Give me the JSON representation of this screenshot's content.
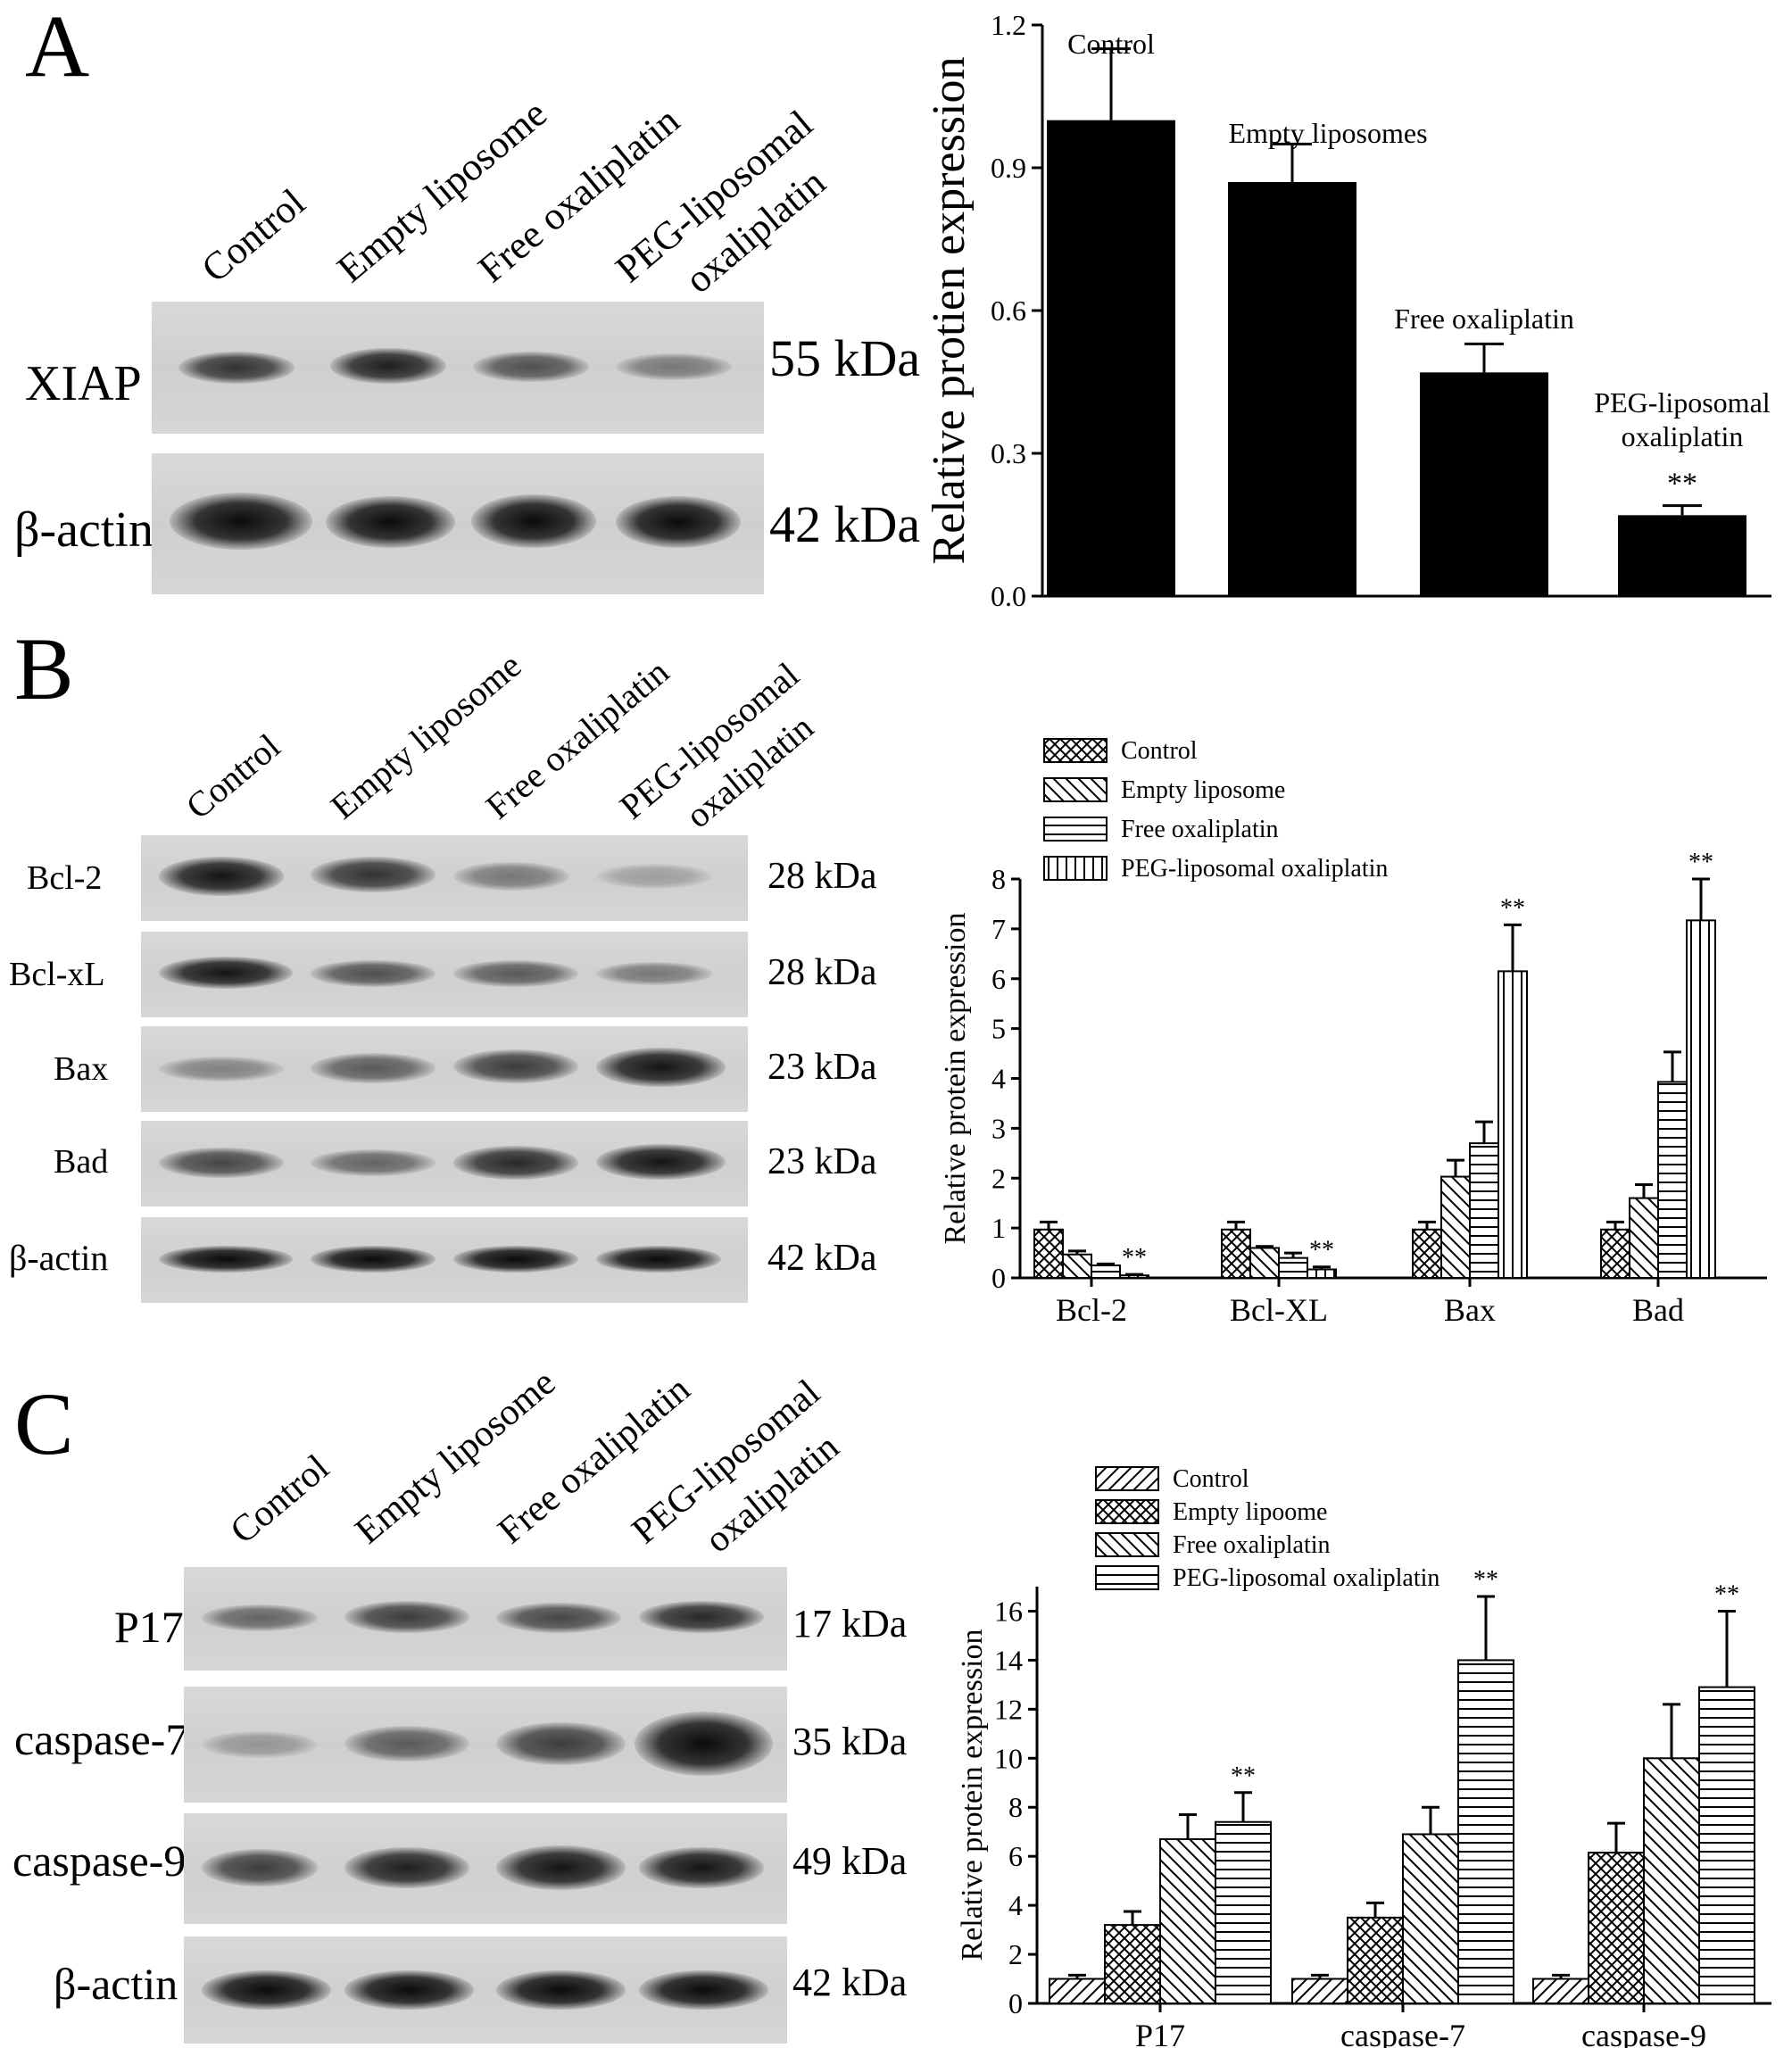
{
  "panels": {
    "A": {
      "letter": "A"
    },
    "B": {
      "letter": "B"
    },
    "C": {
      "letter": "C"
    }
  },
  "blotA": {
    "lanes": [
      "Control",
      "Empty liposome",
      "Free oxaliplatin",
      "PEG-liposomal",
      "oxaliplatin"
    ],
    "rows": [
      {
        "label": "XIAP",
        "kda": "55 kDa",
        "intensity": [
          0.8,
          0.9,
          0.65,
          0.45
        ]
      },
      {
        "label": "β-actin",
        "kda": "42 kDa",
        "intensity": [
          1.0,
          1.0,
          1.0,
          1.0
        ]
      }
    ]
  },
  "blotB": {
    "lanes": [
      "Control",
      "Empty liposome",
      "Free oxaliplatin",
      "PEG-liposomal",
      "oxaliplatin"
    ],
    "rows": [
      {
        "label": "Bcl-2",
        "kda": "28 kDa",
        "intensity": [
          0.95,
          0.8,
          0.45,
          0.25
        ]
      },
      {
        "label": "Bcl-xL",
        "kda": "28 kDa",
        "intensity": [
          0.95,
          0.65,
          0.6,
          0.45
        ]
      },
      {
        "label": "Bax",
        "kda": "23 kDa",
        "intensity": [
          0.4,
          0.6,
          0.75,
          0.95
        ]
      },
      {
        "label": "Bad",
        "kda": "23 kDa",
        "intensity": [
          0.7,
          0.55,
          0.85,
          0.95
        ]
      },
      {
        "label": "β-actin",
        "kda": "42 kDa",
        "intensity": [
          1.0,
          1.0,
          1.0,
          1.0
        ]
      }
    ]
  },
  "blotC": {
    "lanes": [
      "Control",
      "Empty liposome",
      "Free oxaliplatin",
      "PEG-liposomal",
      "oxaliplatin"
    ],
    "rows": [
      {
        "label": "P17",
        "kda": "17 kDa",
        "intensity": [
          0.55,
          0.75,
          0.7,
          0.85
        ]
      },
      {
        "label": "caspase-7",
        "kda": "35 kDa",
        "intensity": [
          0.3,
          0.6,
          0.75,
          1.0
        ]
      },
      {
        "label": "caspase-9",
        "kda": "49 kDa",
        "intensity": [
          0.75,
          0.9,
          0.95,
          0.95
        ]
      },
      {
        "label": "β-actin",
        "kda": "42 kDa",
        "intensity": [
          1.0,
          1.0,
          1.0,
          1.0
        ]
      }
    ]
  },
  "chart_data": [
    {
      "type": "bar",
      "ylabel": "Relative  protien expression",
      "ylim": [
        0,
        1.2
      ],
      "yticks": [
        "0.0",
        "0.3",
        "0.6",
        "0.9",
        "1.2"
      ],
      "categories": [
        "Control",
        "Empty liposomes",
        "Free oxaliplatin",
        "PEG-liposomal oxaliplatin"
      ],
      "bar_labels": [
        [
          "Control"
        ],
        [
          "Empty liposomes"
        ],
        [
          "Free oxaliplatin"
        ],
        [
          "PEG-liposomal",
          "oxaliplatin"
        ]
      ],
      "values": [
        1.0,
        0.87,
        0.47,
        0.17
      ],
      "errors": [
        0.15,
        0.08,
        0.06,
        0.02
      ],
      "annotations": [
        "",
        "",
        "",
        "**"
      ],
      "color": "#000000",
      "grid": false
    },
    {
      "type": "bar",
      "ylabel": "Relative protein expression",
      "ylim": [
        0,
        8
      ],
      "yticks": [
        "0",
        "1",
        "2",
        "3",
        "4",
        "5",
        "6",
        "7",
        "8"
      ],
      "categories": [
        "Bcl-2",
        "Bcl-XL",
        "Bax",
        "Bad"
      ],
      "legend_position": "top-left",
      "series": [
        {
          "name": "Control",
          "pattern": "crosshatch",
          "values": [
            0.97,
            0.97,
            0.97,
            0.97
          ],
          "errors": [
            0.15,
            0.15,
            0.15,
            0.15
          ],
          "annotations": [
            "",
            "",
            "",
            ""
          ]
        },
        {
          "name": "Empty liposome",
          "pattern": "diag-back",
          "values": [
            0.47,
            0.6,
            2.03,
            1.6
          ],
          "errors": [
            0.07,
            0.03,
            0.33,
            0.27
          ],
          "annotations": [
            "",
            "",
            "",
            ""
          ]
        },
        {
          "name": "Free oxaliplatin",
          "pattern": "horizontal",
          "values": [
            0.25,
            0.4,
            2.7,
            3.93
          ],
          "errors": [
            0.03,
            0.1,
            0.43,
            0.6
          ],
          "annotations": [
            "",
            "",
            "",
            ""
          ]
        },
        {
          "name": "PEG-liposomal oxaliplatin",
          "pattern": "vertical",
          "values": [
            0.05,
            0.17,
            6.15,
            7.17
          ],
          "errors": [
            0.02,
            0.05,
            0.93,
            0.83
          ],
          "annotations": [
            "**",
            "**",
            "**",
            "**"
          ]
        }
      ],
      "grid": false
    },
    {
      "type": "bar",
      "ylabel": "Relative protein expression",
      "ylim": [
        0,
        17
      ],
      "yticks": [
        "0",
        "2",
        "4",
        "6",
        "8",
        "10",
        "12",
        "14",
        "16"
      ],
      "categories": [
        "P17",
        "caspase-7",
        "caspase-9"
      ],
      "legend_position": "top-left",
      "series": [
        {
          "name": "Control",
          "pattern": "diag-fwd",
          "values": [
            1.0,
            1.0,
            1.0
          ],
          "errors": [
            0.15,
            0.15,
            0.15
          ],
          "annotations": [
            "",
            "",
            ""
          ]
        },
        {
          "name": "Empty lipoome",
          "pattern": "crosshatch",
          "values": [
            3.2,
            3.5,
            6.15
          ],
          "errors": [
            0.55,
            0.6,
            1.2
          ],
          "annotations": [
            "",
            "",
            ""
          ]
        },
        {
          "name": "Free oxaliplatin",
          "pattern": "diag-back",
          "values": [
            6.7,
            6.9,
            10.0
          ],
          "errors": [
            1.0,
            1.1,
            2.2
          ],
          "annotations": [
            "",
            "",
            ""
          ]
        },
        {
          "name": "PEG-liposomal oxaliplatin",
          "pattern": "horizontal",
          "values": [
            7.4,
            14.0,
            12.9
          ],
          "errors": [
            1.2,
            2.6,
            3.1
          ],
          "annotations": [
            "**",
            "**",
            "**"
          ]
        }
      ],
      "grid": false
    }
  ]
}
